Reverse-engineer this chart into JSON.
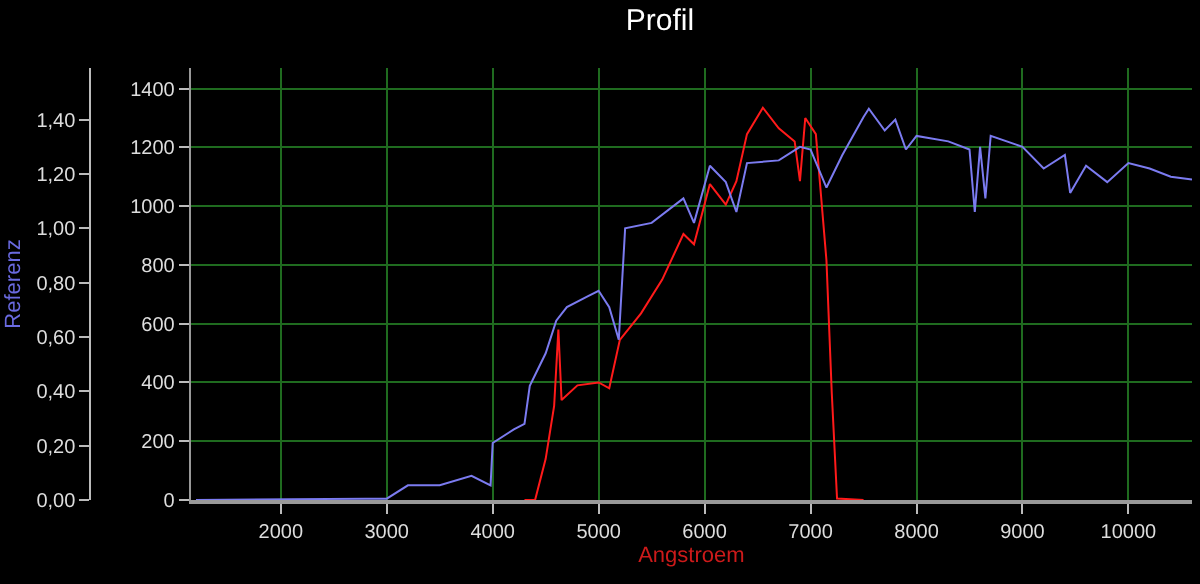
{
  "chart_data": {
    "type": "line",
    "title": "Profil",
    "xlabel": "Angstroem",
    "y2label": "Referenz",
    "grid": true,
    "marker": "none",
    "line_style": "solid",
    "xlim": [
      1150,
      10600
    ],
    "xticks": [
      2000,
      3000,
      4000,
      5000,
      6000,
      7000,
      8000,
      9000,
      10000
    ],
    "ylim": [
      0,
      1470
    ],
    "yticks": [
      0,
      200,
      400,
      600,
      800,
      1000,
      1200,
      1400
    ],
    "y2lim": [
      0,
      1.59
    ],
    "y2ticks": [
      {
        "value": 0,
        "label": "0,00"
      },
      {
        "value": 0.2,
        "label": "0,20"
      },
      {
        "value": 0.4,
        "label": "0,40"
      },
      {
        "value": 0.6,
        "label": "0,60"
      },
      {
        "value": 0.8,
        "label": "0,80"
      },
      {
        "value": 1.0,
        "label": "1,00"
      },
      {
        "value": 1.2,
        "label": "1,20"
      },
      {
        "value": 1.4,
        "label": "1,40"
      }
    ],
    "series": [
      {
        "color": "#7b7bf0",
        "axis": "y2",
        "x": [
          1200,
          2800,
          3000,
          3200,
          3500,
          3800,
          3980,
          4000,
          4200,
          4300,
          4350,
          4500,
          4600,
          4700,
          4900,
          5000,
          5100,
          5190,
          5250,
          5500,
          5800,
          5900,
          6050,
          6200,
          6300,
          6400,
          6700,
          6900,
          7000,
          7150,
          7300,
          7500,
          7550,
          7700,
          7800,
          7900,
          8000,
          8300,
          8500,
          8550,
          8600,
          8650,
          8700,
          9000,
          9200,
          9400,
          9450,
          9600,
          9800,
          10000,
          10200,
          10400,
          10600
        ],
        "values": [
          0,
          0.005,
          0.005,
          0.054,
          0.054,
          0.089,
          0.054,
          0.21,
          0.26,
          0.28,
          0.42,
          0.54,
          0.66,
          0.71,
          0.75,
          0.77,
          0.71,
          0.59,
          1.0,
          1.02,
          1.11,
          1.02,
          1.23,
          1.17,
          1.06,
          1.24,
          1.25,
          1.3,
          1.29,
          1.15,
          1.27,
          1.41,
          1.44,
          1.36,
          1.4,
          1.29,
          1.34,
          1.32,
          1.29,
          1.06,
          1.3,
          1.11,
          1.34,
          1.3,
          1.22,
          1.27,
          1.13,
          1.23,
          1.17,
          1.24,
          1.22,
          1.19,
          1.18
        ]
      },
      {
        "color": "#ff1a1a",
        "x": [
          4300,
          4400,
          4500,
          4580,
          4620,
          4650,
          4800,
          5000,
          5100,
          5200,
          5400,
          5600,
          5800,
          5900,
          6050,
          6200,
          6300,
          6400,
          6550,
          6700,
          6850,
          6900,
          6950,
          7050,
          7150,
          7200,
          7250,
          7500
        ],
        "values": [
          0,
          0,
          140,
          320,
          580,
          340,
          390,
          400,
          380,
          545,
          635,
          750,
          905,
          870,
          1075,
          1005,
          1085,
          1245,
          1335,
          1265,
          1220,
          1085,
          1300,
          1245,
          815,
          365,
          5,
          0
        ]
      }
    ]
  }
}
